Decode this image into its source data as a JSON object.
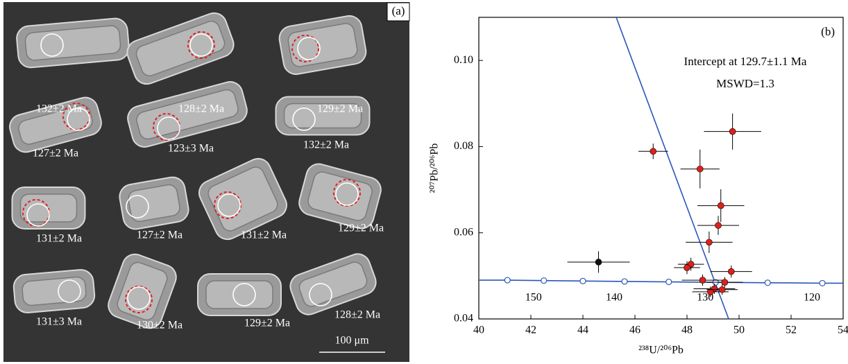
{
  "panel_a": {
    "panel_label": "(a)",
    "labels": [
      "132±2 Ma",
      "128±2 Ma",
      "129±2 Ma",
      "127±2 Ma",
      "123±3 Ma",
      "132±2 Ma",
      "131±2 Ma",
      "127±2 Ma",
      "131±2 Ma",
      "129±2 Ma",
      "131±3 Ma",
      "130±2 Ma",
      "129±2 Ma",
      "128±2 Ma"
    ],
    "scale_bar": "100 μm"
  },
  "chart_data": {
    "type": "scatter",
    "panel_label": "(b)",
    "x_label": "²³⁸U/²⁰⁶Pb",
    "y_label": "²⁰⁷Pb/²⁰⁶Pb",
    "annotations": [
      "Intercept at 129.7±1.1 Ma",
      "MSWD=1.3"
    ],
    "xlim": [
      40,
      54
    ],
    "ylim": [
      0.04,
      0.11
    ],
    "xticks": [
      40,
      42,
      44,
      46,
      48,
      50,
      52,
      54
    ],
    "yticks": [
      0.04,
      0.06,
      0.08,
      {
        "value": 0.1,
        "label": "0.10"
      }
    ],
    "series": [
      {
        "color": "#e0201b",
        "x": [
          46.7,
          48.5,
          49.75,
          49.3,
          49.2,
          48.85,
          48.15,
          48.0,
          49.7,
          48.6,
          49.45,
          49.05,
          48.9,
          49.35
        ],
        "values": [
          0.0789,
          0.0748,
          0.0835,
          0.0663,
          0.0617,
          0.0578,
          0.0527,
          0.0519,
          0.051,
          0.049,
          0.0485,
          0.047,
          0.0463,
          0.0468
        ],
        "xerr": [
          0.57,
          0.75,
          1.1,
          0.9,
          0.8,
          0.9,
          0.5,
          0.5,
          0.8,
          0.8,
          0.7,
          0.8,
          0.7,
          0.6
        ],
        "yerr": [
          0.0018,
          0.0045,
          0.0042,
          0.0038,
          0.0022,
          0.0025,
          0.0015,
          0.0015,
          0.0014,
          0.0013,
          0.0012,
          0.0012,
          0.0012,
          0.0012
        ]
      },
      {
        "color": "#111111",
        "x": [
          44.6
        ],
        "values": [
          0.0532
        ],
        "xerr": [
          1.2
        ],
        "yerr": [
          0.0025
        ]
      }
    ],
    "concordia": {
      "color": "#2a56b8",
      "x": [
        41.1,
        42.5,
        44.0,
        45.6,
        47.3,
        49.1,
        51.1,
        53.2
      ],
      "y": [
        0.049,
        0.0489,
        0.0488,
        0.0487,
        0.0486,
        0.0485,
        0.0484,
        0.0483
      ],
      "labels": [
        null,
        "150",
        null,
        "140",
        null,
        "130",
        null,
        "120"
      ]
    },
    "discordia": {
      "color": "#2a56b8",
      "x": [
        45.28,
        49.6
      ],
      "y": [
        0.11,
        0.04
      ]
    }
  }
}
